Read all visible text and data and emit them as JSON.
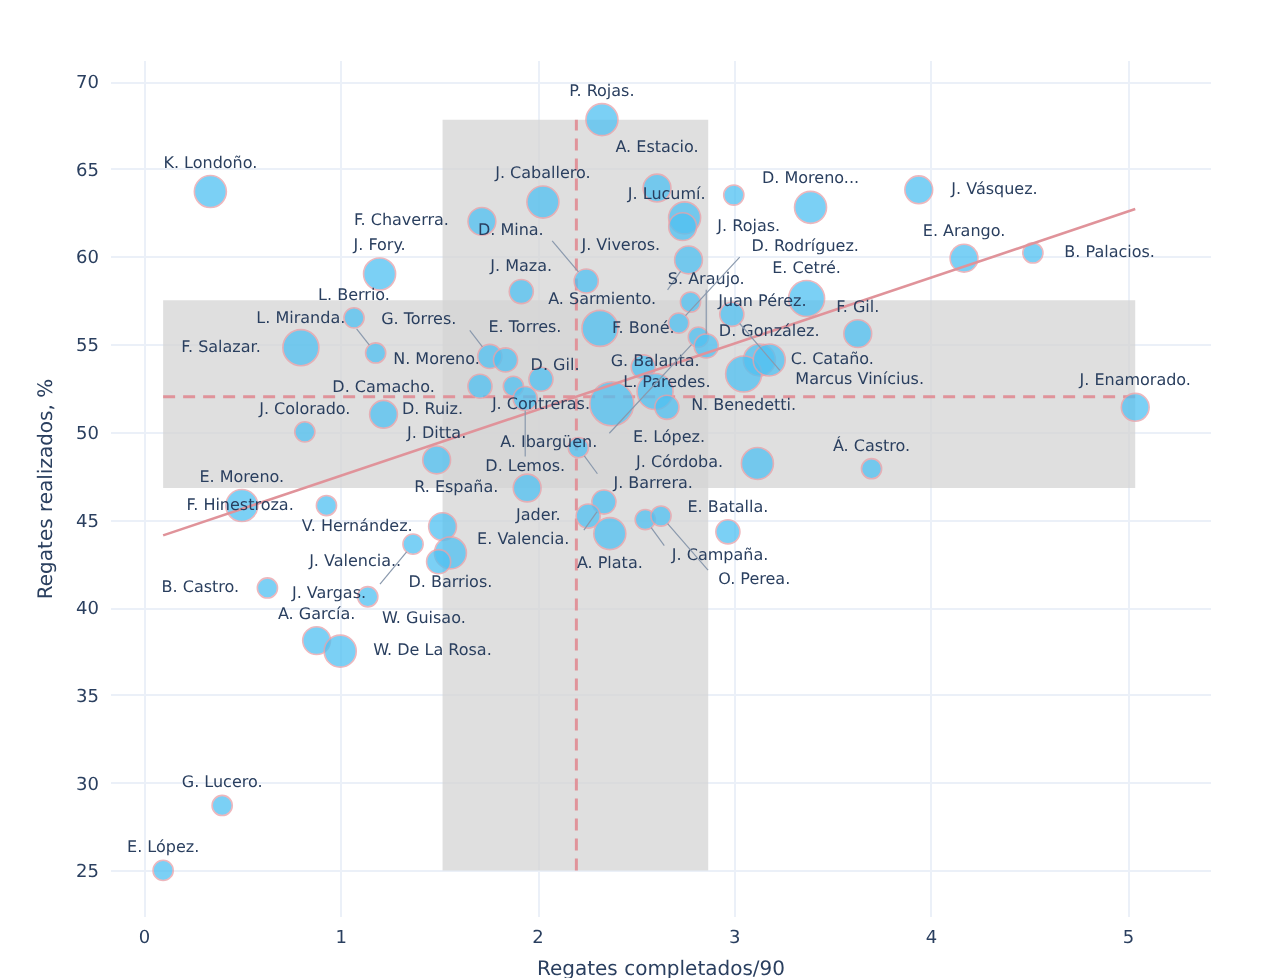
{
  "chart_data": {
    "type": "bubble",
    "xlabel": "Regates completados/90",
    "ylabel": "Regates realizados, %",
    "xlim": [
      -0.17,
      5.42
    ],
    "ylim": [
      22.4,
      71.2
    ],
    "xticks": [
      0,
      1,
      2,
      3,
      4,
      5
    ],
    "yticks": [
      25,
      30,
      35,
      40,
      45,
      50,
      55,
      60,
      65,
      70
    ],
    "grid": true,
    "series": [
      {
        "type": "bubble",
        "color": "#4fc1f2",
        "x": [
          0.34,
          2.33,
          2.03,
          1.72,
          1.2,
          1.92,
          2.25,
          1.07,
          0.8,
          1.18,
          2.32,
          1.76,
          1.84,
          2.02,
          1.71,
          1.88,
          1.94,
          2.38,
          2.54,
          2.6,
          2.66,
          2.21,
          1.95,
          2.34,
          2.26,
          2.37,
          2.55,
          2.63,
          2.97,
          3.12,
          3.7,
          1.49,
          1.22,
          0.82,
          0.5,
          0.93,
          0.63,
          1.14,
          0.88,
          1.0,
          1.52,
          1.37,
          1.56,
          1.5,
          2.61,
          2.75,
          2.74,
          2.77,
          3.0,
          3.39,
          3.94,
          4.17,
          4.52,
          3.37,
          3.63,
          5.04,
          2.78,
          2.72,
          2.99,
          2.82,
          2.86,
          3.13,
          3.05,
          3.18,
          0.4,
          0.1
        ],
        "values": [
          63.7,
          67.8,
          63.1,
          62.0,
          59.0,
          58.0,
          58.6,
          56.5,
          54.8,
          54.5,
          55.9,
          54.3,
          54.1,
          53.0,
          52.6,
          52.6,
          51.9,
          51.6,
          53.7,
          52.3,
          51.4,
          49.1,
          46.8,
          46.0,
          45.2,
          44.2,
          45.0,
          45.2,
          44.3,
          48.2,
          47.9,
          48.4,
          51.0,
          50.0,
          45.8,
          45.8,
          41.1,
          40.6,
          38.1,
          37.5,
          44.6,
          43.6,
          43.1,
          42.6,
          63.9,
          62.2,
          61.7,
          59.8,
          63.5,
          62.8,
          63.8,
          59.9,
          60.2,
          57.6,
          55.6,
          51.4,
          57.4,
          56.2,
          56.7,
          55.4,
          54.9,
          54.1,
          53.3,
          54.1,
          28.7,
          25.0
        ],
        "sizes": [
          0.53,
          0.53,
          0.53,
          0.4,
          0.53,
          0.3,
          0.3,
          0.21,
          0.67,
          0.21,
          0.67,
          0.3,
          0.3,
          0.3,
          0.3,
          0.21,
          0.3,
          1,
          0.3,
          0.67,
          0.3,
          0.21,
          0.4,
          0.3,
          0.3,
          0.53,
          0.21,
          0.21,
          0.3,
          0.53,
          0.21,
          0.4,
          0.4,
          0.21,
          0.53,
          0.21,
          0.21,
          0.21,
          0.4,
          0.53,
          0.4,
          0.21,
          0.53,
          0.3,
          0.4,
          0.53,
          0.4,
          0.4,
          0.21,
          0.53,
          0.4,
          0.4,
          0.21,
          0.67,
          0.4,
          0.4,
          0.21,
          0.21,
          0.3,
          0.21,
          0.3,
          0.53,
          0.67,
          0.53,
          0.21,
          0.21
        ]
      },
      {
        "type": "line",
        "color": "#e0939a",
        "x": [
          0.1,
          5.04
        ],
        "values": [
          44.1,
          62.7
        ]
      }
    ],
    "bands": [
      {
        "axis": "x",
        "from": 1.52,
        "to": 2.87,
        "color": "#d4d4d4"
      },
      {
        "axis": "y",
        "from": 46.8,
        "to": 57.5,
        "color": "#d4d4d4"
      }
    ],
    "ref_lines": [
      {
        "axis": "x",
        "value": 2.2,
        "color": "#e0939a",
        "line_style": "dashed"
      },
      {
        "axis": "y",
        "value": 52.0,
        "color": "#e0939a",
        "line_style": "dashed"
      }
    ],
    "annotations": [
      {
        "text": "K. Londoño.",
        "x": 0.34,
        "y": 63.7
      },
      {
        "text": "P. Rojas.",
        "x": 2.33,
        "y": 67.8
      },
      {
        "text": "J. Caballero.",
        "x": 2.03,
        "y": 63.1
      },
      {
        "text": "F. Chaverra.",
        "x": 1.72,
        "y": 62.0
      },
      {
        "text": "J. Fory.",
        "x": 1.2,
        "y": 59.0
      },
      {
        "text": "J. Maza.",
        "x": 1.92,
        "y": 58.0
      },
      {
        "text": "D. Mina.",
        "x": 2.25,
        "y": 58.6
      },
      {
        "text": "L. Berrio.",
        "x": 1.07,
        "y": 56.5
      },
      {
        "text": "F. Salazar.",
        "x": 0.8,
        "y": 54.8
      },
      {
        "text": "L. Miranda.",
        "x": 1.18,
        "y": 54.5
      },
      {
        "text": "E. Torres.",
        "x": 2.32,
        "y": 55.9
      },
      {
        "text": "G. Torres.",
        "x": 1.76,
        "y": 54.3
      },
      {
        "text": "N. Moreno.",
        "x": 1.84,
        "y": 54.1
      },
      {
        "text": "J. Contreras.",
        "x": 2.02,
        "y": 53.0
      },
      {
        "text": "D. Ruiz.",
        "x": 1.71,
        "y": 52.6
      },
      {
        "text": "D. Gil.",
        "x": 1.88,
        "y": 52.6
      },
      {
        "text": "D. Lemos.",
        "x": 1.94,
        "y": 51.9
      },
      {
        "text": "E. López.",
        "x": 2.38,
        "y": 51.6
      },
      {
        "text": "F. Boné.",
        "x": 2.54,
        "y": 53.7
      },
      {
        "text": "G. Balanta.",
        "x": 2.6,
        "y": 52.3
      },
      {
        "text": "L. Paredes.",
        "x": 2.66,
        "y": 51.4
      },
      {
        "text": "J. Barrera.",
        "x": 2.21,
        "y": 49.1
      },
      {
        "text": "R. España.",
        "x": 1.95,
        "y": 46.8
      },
      {
        "text": "E. Valencia.",
        "x": 2.34,
        "y": 46.0
      },
      {
        "text": "Jader.",
        "x": 2.26,
        "y": 45.2
      },
      {
        "text": "A. Plata.",
        "x": 2.37,
        "y": 44.2
      },
      {
        "text": "J. Campaña.",
        "x": 2.55,
        "y": 45.0
      },
      {
        "text": "O. Perea.",
        "x": 2.63,
        "y": 45.2
      },
      {
        "text": "E. Batalla.",
        "x": 2.97,
        "y": 44.3
      },
      {
        "text": "J. Córdoba.",
        "x": 3.12,
        "y": 48.2
      },
      {
        "text": "Á. Castro.",
        "x": 3.7,
        "y": 47.9
      },
      {
        "text": "J. Ditta.",
        "x": 1.49,
        "y": 48.4
      },
      {
        "text": "D. Camacho.",
        "x": 1.22,
        "y": 51.0
      },
      {
        "text": "J. Colorado.",
        "x": 0.82,
        "y": 50.0
      },
      {
        "text": "E. Moreno.",
        "x": 0.5,
        "y": 45.8
      },
      {
        "text": "F. Hinestroza.",
        "x": 0.93,
        "y": 45.8
      },
      {
        "text": "B. Castro.",
        "x": 0.63,
        "y": 41.1
      },
      {
        "text": "W. Guisao.",
        "x": 1.14,
        "y": 40.6
      },
      {
        "text": "A. García.",
        "x": 0.88,
        "y": 38.1
      },
      {
        "text": "W. De La Rosa.",
        "x": 1.0,
        "y": 37.5
      },
      {
        "text": "V. Hernández.",
        "x": 1.52,
        "y": 44.6
      },
      {
        "text": "J. Vargas.",
        "x": 1.37,
        "y": 43.6
      },
      {
        "text": "D. Barrios.",
        "x": 1.56,
        "y": 43.1
      },
      {
        "text": "J. Valencia..",
        "x": 1.5,
        "y": 42.6
      },
      {
        "text": "A. Estacio.",
        "x": 2.61,
        "y": 63.9
      },
      {
        "text": "J. Viveros.",
        "x": 2.75,
        "y": 62.2
      },
      {
        "text": "J. Rojas.",
        "x": 2.74,
        "y": 61.7
      },
      {
        "text": "A. Sarmiento.",
        "x": 2.77,
        "y": 59.8
      },
      {
        "text": "J. Lucumí.",
        "x": 3.0,
        "y": 63.5
      },
      {
        "text": "D. Moreno...",
        "x": 3.39,
        "y": 62.8
      },
      {
        "text": "J. Vásquez.",
        "x": 3.94,
        "y": 63.8
      },
      {
        "text": "E. Arango.",
        "x": 4.17,
        "y": 59.9
      },
      {
        "text": "B. Palacios.",
        "x": 4.52,
        "y": 60.2
      },
      {
        "text": "E. Cetré.",
        "x": 3.37,
        "y": 57.6
      },
      {
        "text": "F. Gil.",
        "x": 3.63,
        "y": 55.6
      },
      {
        "text": "J. Enamorado.",
        "x": 5.04,
        "y": 51.4
      },
      {
        "text": "Juan Pérez.",
        "x": 2.78,
        "y": 57.4
      },
      {
        "text": "D. Rodríguez.",
        "x": 2.72,
        "y": 56.2
      },
      {
        "text": "Marcus Vinícius.",
        "x": 2.99,
        "y": 56.7
      },
      {
        "text": "A. Ibargüen.",
        "x": 2.82,
        "y": 55.4
      },
      {
        "text": "S. Araujo.",
        "x": 2.86,
        "y": 54.9
      },
      {
        "text": "C. Cataño.",
        "x": 3.13,
        "y": 54.1
      },
      {
        "text": "N. Benedetti.",
        "x": 3.05,
        "y": 53.3
      },
      {
        "text": "D. González.",
        "x": 3.18,
        "y": 54.1
      },
      {
        "text": "G. Lucero.",
        "x": 0.4,
        "y": 28.7
      },
      {
        "text": "E. López.",
        "x": 0.1,
        "y": 25.0
      }
    ]
  }
}
